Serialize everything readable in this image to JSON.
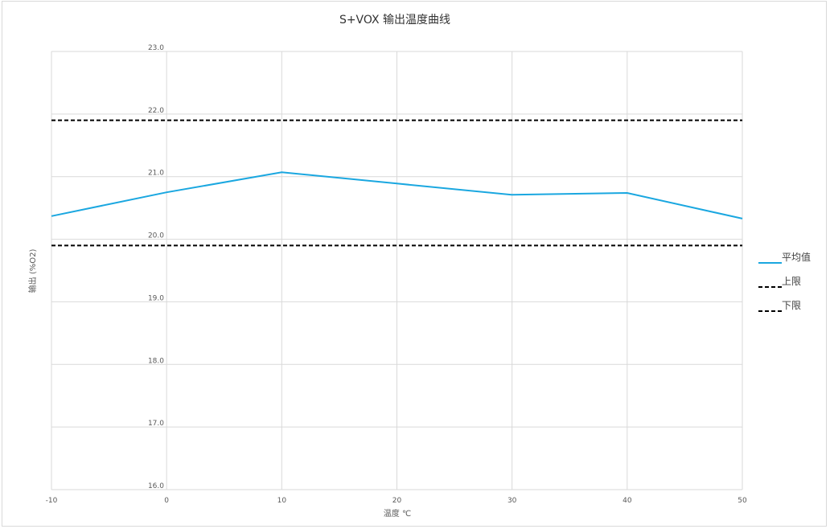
{
  "chart_data": {
    "type": "line",
    "title": "S+VOX  输出温度曲线",
    "xlabel": "温度 ℃",
    "ylabel": "输出 (%O2)",
    "xlim": [
      -10,
      50
    ],
    "ylim": [
      16.0,
      23.0
    ],
    "x_ticks": [
      -10,
      0,
      10,
      20,
      30,
      40,
      50
    ],
    "y_ticks": [
      "16.0",
      "17.0",
      "18.0",
      "19.0",
      "20.0",
      "21.0",
      "22.0",
      "23.0"
    ],
    "grid": true,
    "legend_position": "right",
    "series": [
      {
        "name": "平均值",
        "color": "#1aa7e0",
        "style": "solid",
        "x": [
          -10,
          0,
          10,
          20,
          30,
          40,
          50
        ],
        "y": [
          20.37,
          20.75,
          21.07,
          20.89,
          20.71,
          20.74,
          20.33
        ]
      },
      {
        "name": "上限",
        "color": "#000000",
        "style": "dashed",
        "x": [
          -10,
          0,
          10,
          20,
          30,
          40,
          50
        ],
        "y": [
          21.9,
          21.9,
          21.9,
          21.9,
          21.9,
          21.9,
          21.9
        ]
      },
      {
        "name": "下限",
        "color": "#000000",
        "style": "dashed",
        "x": [
          -10,
          0,
          10,
          20,
          30,
          40,
          50
        ],
        "y": [
          19.9,
          19.9,
          19.9,
          19.9,
          19.9,
          19.9,
          19.9
        ]
      }
    ]
  }
}
